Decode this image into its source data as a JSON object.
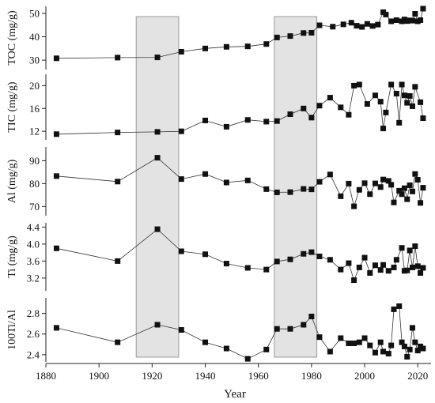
{
  "chart_data": {
    "type": "scatter",
    "xlabel": "Year",
    "xlim": [
      1880,
      2025
    ],
    "xticks": [
      1880,
      1900,
      1920,
      1940,
      1960,
      1980,
      2000,
      2020
    ],
    "shaded_x_ranges": [
      [
        1914,
        1930
      ],
      [
        1966,
        1982
      ]
    ],
    "marker_color": "#111111",
    "shade_color": "#e3e3e3",
    "panels": [
      {
        "ylabel": "TOC (mg/g)",
        "ylim": [
          26,
          53
        ],
        "yticks": [
          30,
          40,
          50
        ],
        "points": [
          [
            1884,
            30.8
          ],
          [
            1907,
            31.1
          ],
          [
            1922,
            31.2
          ],
          [
            1931,
            33.6
          ],
          [
            1940,
            35
          ],
          [
            1948,
            35.7
          ],
          [
            1956,
            35.9
          ],
          [
            1963,
            36.9
          ],
          [
            1967,
            39.7
          ],
          [
            1972,
            40.3
          ],
          [
            1977,
            41.6
          ],
          [
            1980,
            41.7
          ],
          [
            1983,
            44.9
          ],
          [
            1988,
            44.3
          ],
          [
            1992,
            45.3
          ],
          [
            1995,
            46
          ],
          [
            1997,
            44.7
          ],
          [
            1999,
            44.2
          ],
          [
            2001,
            45.5
          ],
          [
            2003,
            44.6
          ],
          [
            2005,
            45.2
          ],
          [
            2007,
            50.5
          ],
          [
            2008,
            49.5
          ],
          [
            2010,
            46.6
          ],
          [
            2012,
            47.1
          ],
          [
            2014,
            46.6
          ],
          [
            2015,
            47.4
          ],
          [
            2016,
            46.7
          ],
          [
            2017,
            47
          ],
          [
            2018,
            46.9
          ],
          [
            2019,
            49.8
          ],
          [
            2020,
            46.6
          ],
          [
            2021,
            47.1
          ],
          [
            2022,
            52
          ]
        ]
      },
      {
        "ylabel": "TIC (mg/g)",
        "ylim": [
          10.5,
          22
        ],
        "yticks": [
          12,
          16,
          20
        ],
        "points": [
          [
            1884,
            11.5
          ],
          [
            1907,
            11.8
          ],
          [
            1922,
            11.9
          ],
          [
            1931,
            12
          ],
          [
            1940,
            13.9
          ],
          [
            1948,
            12.8
          ],
          [
            1956,
            14
          ],
          [
            1963,
            13.7
          ],
          [
            1967,
            13.8
          ],
          [
            1972,
            15
          ],
          [
            1977,
            16
          ],
          [
            1980,
            14.4
          ],
          [
            1983,
            16.5
          ],
          [
            1987,
            17.9
          ],
          [
            1991,
            16.2
          ],
          [
            1994,
            14.9
          ],
          [
            1996,
            20
          ],
          [
            1998,
            20.2
          ],
          [
            2001,
            16.8
          ],
          [
            2004,
            18.3
          ],
          [
            2006,
            17.2
          ],
          [
            2007,
            12.5
          ],
          [
            2008,
            15.3
          ],
          [
            2010,
            20.2
          ],
          [
            2012,
            18.6
          ],
          [
            2013,
            13.5
          ],
          [
            2014,
            20.2
          ],
          [
            2015,
            18.3
          ],
          [
            2016,
            17
          ],
          [
            2017,
            18.2
          ],
          [
            2018,
            16.4
          ],
          [
            2019,
            19.8
          ],
          [
            2021,
            17.1
          ],
          [
            2022,
            14.3
          ]
        ]
      },
      {
        "ylabel": "Al (mg/g)",
        "ylim": [
          66,
          96
        ],
        "yticks": [
          70,
          80,
          90
        ],
        "points": [
          [
            1884,
            83.3
          ],
          [
            1907,
            80.9
          ],
          [
            1922,
            91.3
          ],
          [
            1931,
            82
          ],
          [
            1940,
            84.2
          ],
          [
            1948,
            80.5
          ],
          [
            1956,
            81.4
          ],
          [
            1963,
            77.6
          ],
          [
            1967,
            76.2
          ],
          [
            1972,
            76.3
          ],
          [
            1977,
            77.7
          ],
          [
            1980,
            77.5
          ],
          [
            1983,
            80.8
          ],
          [
            1987,
            84
          ],
          [
            1991,
            74.5
          ],
          [
            1994,
            80
          ],
          [
            1996,
            70.1
          ],
          [
            1998,
            77.3
          ],
          [
            2000,
            80.2
          ],
          [
            2002,
            75.4
          ],
          [
            2004,
            80.1
          ],
          [
            2006,
            78.5
          ],
          [
            2007,
            81.8
          ],
          [
            2009,
            81.2
          ],
          [
            2010,
            79.5
          ],
          [
            2011,
            71.8
          ],
          [
            2013,
            76.9
          ],
          [
            2014,
            75.4
          ],
          [
            2015,
            78
          ],
          [
            2016,
            73.2
          ],
          [
            2017,
            79.3
          ],
          [
            2018,
            76.6
          ],
          [
            2019,
            84.2
          ],
          [
            2020,
            81.7
          ],
          [
            2021,
            71.6
          ],
          [
            2022,
            78.2
          ]
        ]
      },
      {
        "ylabel": "Ti (mg/g)",
        "ylim": [
          2.9,
          4.5
        ],
        "yticks": [
          3.2,
          3.6,
          4.0,
          4.4
        ],
        "points": [
          [
            1884,
            3.9
          ],
          [
            1907,
            3.6
          ],
          [
            1922,
            4.35
          ],
          [
            1931,
            3.83
          ],
          [
            1940,
            3.76
          ],
          [
            1948,
            3.54
          ],
          [
            1956,
            3.44
          ],
          [
            1963,
            3.4
          ],
          [
            1967,
            3.59
          ],
          [
            1972,
            3.64
          ],
          [
            1977,
            3.77
          ],
          [
            1980,
            3.81
          ],
          [
            1983,
            3.71
          ],
          [
            1987,
            3.63
          ],
          [
            1991,
            3.4
          ],
          [
            1994,
            3.55
          ],
          [
            1996,
            3.15
          ],
          [
            1998,
            3.45
          ],
          [
            2000,
            3.68
          ],
          [
            2002,
            3.32
          ],
          [
            2004,
            3.5
          ],
          [
            2006,
            3.39
          ],
          [
            2007,
            3.51
          ],
          [
            2009,
            3.37
          ],
          [
            2011,
            3.45
          ],
          [
            2012,
            3.63
          ],
          [
            2014,
            3.91
          ],
          [
            2015,
            3.37
          ],
          [
            2016,
            3.38
          ],
          [
            2017,
            3.85
          ],
          [
            2018,
            3.45
          ],
          [
            2019,
            3.95
          ],
          [
            2020,
            3.48
          ],
          [
            2021,
            3.32
          ],
          [
            2022,
            3.44
          ]
        ]
      },
      {
        "ylabel": "100Ti/Al",
        "ylim": [
          2.33,
          2.95
        ],
        "yticks": [
          2.4,
          2.6,
          2.8
        ],
        "points": [
          [
            1884,
            2.66
          ],
          [
            1907,
            2.52
          ],
          [
            1922,
            2.69
          ],
          [
            1931,
            2.64
          ],
          [
            1940,
            2.52
          ],
          [
            1948,
            2.46
          ],
          [
            1956,
            2.36
          ],
          [
            1963,
            2.45
          ],
          [
            1967,
            2.65
          ],
          [
            1972,
            2.65
          ],
          [
            1977,
            2.69
          ],
          [
            1980,
            2.77
          ],
          [
            1983,
            2.57
          ],
          [
            1987,
            2.43
          ],
          [
            1991,
            2.56
          ],
          [
            1994,
            2.51
          ],
          [
            1996,
            2.51
          ],
          [
            1998,
            2.52
          ],
          [
            2000,
            2.56
          ],
          [
            2002,
            2.49
          ],
          [
            2004,
            2.42
          ],
          [
            2006,
            2.52
          ],
          [
            2007,
            2.43
          ],
          [
            2009,
            2.41
          ],
          [
            2010,
            2.49
          ],
          [
            2011,
            2.84
          ],
          [
            2013,
            2.87
          ],
          [
            2014,
            2.52
          ],
          [
            2015,
            2.48
          ],
          [
            2016,
            2.38
          ],
          [
            2017,
            2.45
          ],
          [
            2018,
            2.66
          ],
          [
            2019,
            2.52
          ],
          [
            2020,
            2.44
          ],
          [
            2021,
            2.48
          ],
          [
            2022,
            2.46
          ]
        ]
      }
    ]
  }
}
